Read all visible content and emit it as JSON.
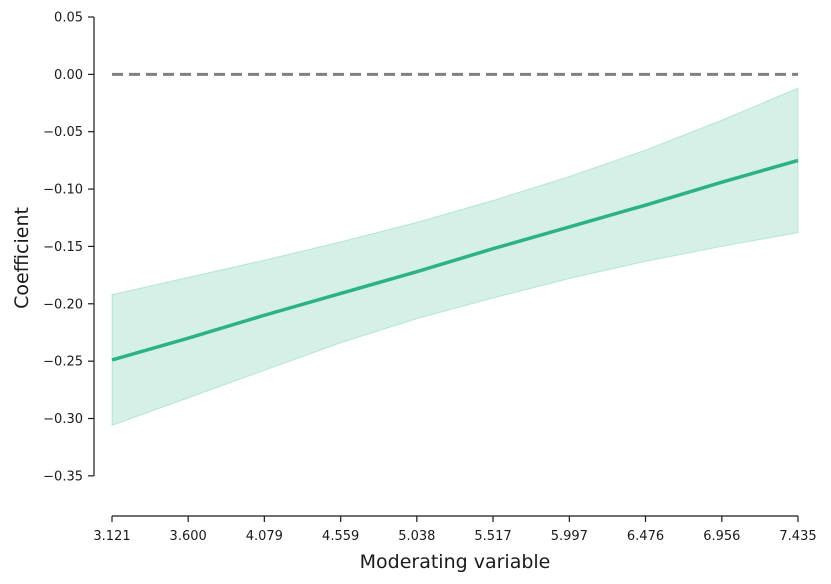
{
  "chart_data": {
    "type": "line",
    "xlabel": "Moderating variable",
    "ylabel": "Coefficient",
    "xlim": [
      3.121,
      7.435
    ],
    "ylim": [
      -0.385,
      0.05
    ],
    "x_ticks": [
      3.121,
      3.6,
      4.079,
      4.559,
      5.038,
      5.517,
      5.997,
      6.476,
      6.956,
      7.435
    ],
    "x_tick_labels": [
      "3.121",
      "3.600",
      "4.079",
      "4.559",
      "5.038",
      "5.517",
      "5.997",
      "6.476",
      "6.956",
      "7.435"
    ],
    "y_ticks": [
      0.05,
      0.0,
      -0.05,
      -0.1,
      -0.15,
      -0.2,
      -0.25,
      -0.3,
      -0.35
    ],
    "y_tick_labels": [
      "0.05",
      "0.00",
      "−0.05",
      "−0.10",
      "−0.15",
      "−0.20",
      "−0.25",
      "−0.30",
      "−0.35"
    ],
    "grid": false,
    "series": [
      {
        "x": [
          3.121,
          3.6,
          4.079,
          4.559,
          5.038,
          5.517,
          5.997,
          6.476,
          6.956,
          7.435
        ],
        "y": [
          -0.249,
          -0.23,
          -0.21,
          -0.191,
          -0.172,
          -0.152,
          -0.133,
          -0.114,
          -0.094,
          -0.075
        ],
        "color": "#2db383"
      }
    ],
    "confidence_band": {
      "x": [
        3.121,
        3.6,
        4.079,
        4.559,
        5.038,
        5.517,
        5.997,
        6.476,
        6.956,
        7.435
      ],
      "lower": [
        -0.306,
        -0.282,
        -0.258,
        -0.234,
        -0.213,
        -0.195,
        -0.178,
        -0.163,
        -0.15,
        -0.138
      ],
      "upper": [
        -0.192,
        -0.177,
        -0.162,
        -0.146,
        -0.129,
        -0.11,
        -0.089,
        -0.066,
        -0.04,
        -0.012
      ],
      "color": "#2db383",
      "opacity": 0.2
    },
    "reference_line": {
      "y": 0.0,
      "style": "dashed",
      "color": "#808080"
    }
  }
}
